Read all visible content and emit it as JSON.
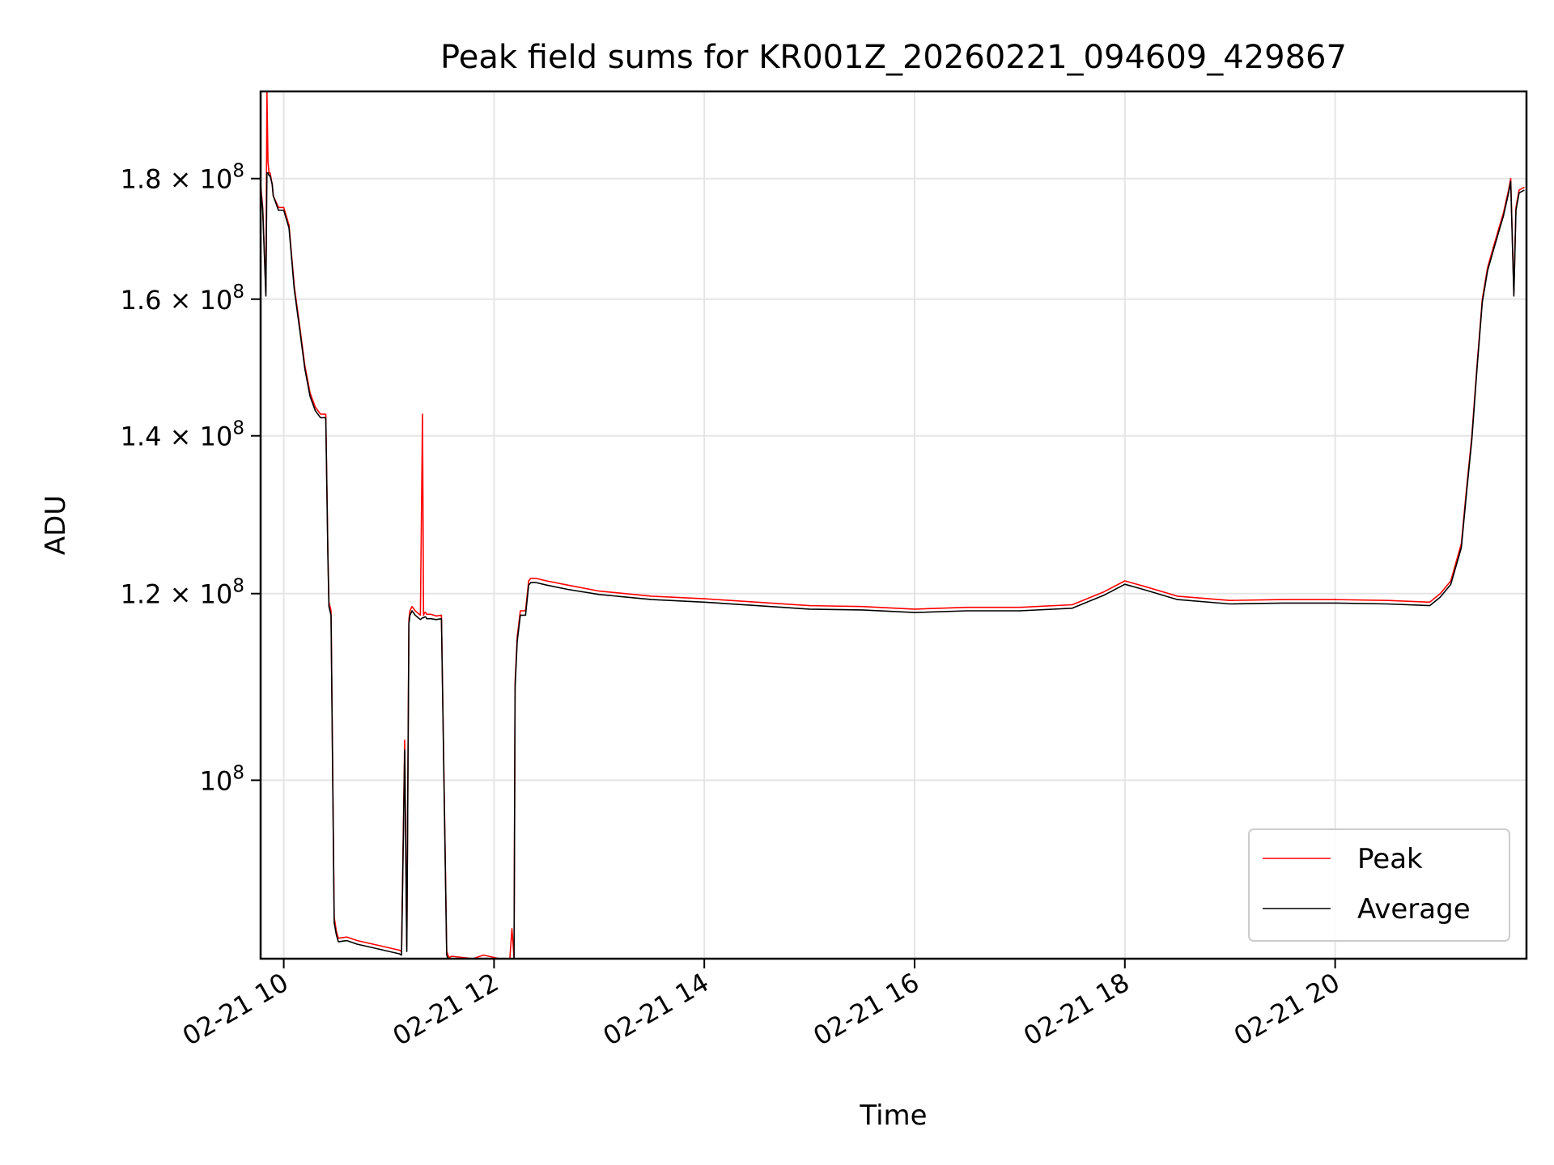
{
  "chart_data": {
    "type": "line",
    "title": "Peak field sums for KR001Z_20260221_094609_429867",
    "xlabel": "Time",
    "ylabel": "ADU",
    "yscale": "log",
    "xlim": [
      9.78,
      21.82
    ],
    "ylim": [
      84000000,
      196000000
    ],
    "grid": true,
    "legend_position": "lower-right",
    "x_ticks": [
      {
        "value": 10,
        "label": "02-21 10"
      },
      {
        "value": 12,
        "label": "02-21 12"
      },
      {
        "value": 14,
        "label": "02-21 14"
      },
      {
        "value": 16,
        "label": "02-21 16"
      },
      {
        "value": 18,
        "label": "02-21 18"
      },
      {
        "value": 20,
        "label": "02-21 20"
      }
    ],
    "y_ticks": [
      {
        "value": 100000000,
        "mantissa": "",
        "exponent": "8"
      },
      {
        "value": 120000000,
        "mantissa": "1.2",
        "exponent": "8"
      },
      {
        "value": 140000000,
        "mantissa": "1.4",
        "exponent": "8"
      },
      {
        "value": 160000000,
        "mantissa": "1.6",
        "exponent": "8"
      },
      {
        "value": 180000000,
        "mantissa": "1.8",
        "exponent": "8"
      }
    ],
    "y_tick_base": "10",
    "y_tick_times": "×",
    "x_unit": "hours (02-21)",
    "series": [
      {
        "name": "Peak",
        "color": "#ff0000",
        "x": [
          9.78,
          9.8,
          9.83,
          9.84,
          9.85,
          9.86,
          9.87,
          9.89,
          9.9,
          9.95,
          10.0,
          10.05,
          10.1,
          10.15,
          10.2,
          10.25,
          10.3,
          10.35,
          10.4,
          10.42,
          10.43,
          10.45,
          10.48,
          10.5,
          10.52,
          10.6,
          10.7,
          10.8,
          10.9,
          11.0,
          11.1,
          11.12,
          11.15,
          11.17,
          11.19,
          11.2,
          11.22,
          11.25,
          11.3,
          11.32,
          11.33,
          11.34,
          11.35,
          11.36,
          11.4,
          11.45,
          11.5,
          11.55,
          11.57,
          11.6,
          11.7,
          11.8,
          11.9,
          12.0,
          12.1,
          12.15,
          12.17,
          12.19,
          12.2,
          12.22,
          12.25,
          12.3,
          12.33,
          12.35,
          12.4,
          12.5,
          12.7,
          13.0,
          13.5,
          14.0,
          14.5,
          15.0,
          15.5,
          16.0,
          16.5,
          17.0,
          17.5,
          17.8,
          18.0,
          18.2,
          18.5,
          19.0,
          19.5,
          20.0,
          20.5,
          20.9,
          21.0,
          21.1,
          21.2,
          21.25,
          21.3,
          21.35,
          21.4,
          21.45,
          21.5,
          21.55,
          21.6,
          21.65,
          21.67,
          21.7,
          21.72,
          21.75,
          21.8
        ],
        "y": [
          179000000,
          175000000,
          161000000,
          196000000,
          183000000,
          181000000,
          181000000,
          179000000,
          177000000,
          175000000,
          175000000,
          172000000,
          162000000,
          156000000,
          150000000,
          146000000,
          144000000,
          143000000,
          143000000,
          125000000,
          119000000,
          118000000,
          87500000,
          86300000,
          85700000,
          85800000,
          85500000,
          85300000,
          85100000,
          84900000,
          84700000,
          84600000,
          104000000,
          85000000,
          117000000,
          118000000,
          118500000,
          118000000,
          117500000,
          143000000,
          117500000,
          117800000,
          117800000,
          117600000,
          117600000,
          117400000,
          117500000,
          84600000,
          84100000,
          84200000,
          84100000,
          84000000,
          84300000,
          84100000,
          83900000,
          84000000,
          86500000,
          84100000,
          110000000,
          115000000,
          118000000,
          118000000,
          121500000,
          121800000,
          121800000,
          121500000,
          121000000,
          120300000,
          119700000,
          119400000,
          119000000,
          118600000,
          118500000,
          118200000,
          118400000,
          118400000,
          118700000,
          120200000,
          121500000,
          120800000,
          119700000,
          119200000,
          119300000,
          119300000,
          119200000,
          119000000,
          120000000,
          121500000,
          126000000,
          133000000,
          140000000,
          150000000,
          160000000,
          165000000,
          168000000,
          171000000,
          174000000,
          178000000,
          180000000,
          161000000,
          175000000,
          178000000,
          178500000
        ]
      },
      {
        "name": "Average",
        "color": "#000000",
        "x": [
          9.78,
          9.8,
          9.83,
          9.84,
          9.85,
          9.86,
          9.87,
          9.89,
          9.9,
          9.95,
          10.0,
          10.05,
          10.1,
          10.15,
          10.2,
          10.25,
          10.3,
          10.35,
          10.4,
          10.42,
          10.43,
          10.45,
          10.48,
          10.5,
          10.52,
          10.6,
          10.7,
          10.8,
          10.9,
          11.0,
          11.1,
          11.12,
          11.15,
          11.17,
          11.19,
          11.2,
          11.22,
          11.25,
          11.3,
          11.32,
          11.33,
          11.34,
          11.35,
          11.36,
          11.4,
          11.45,
          11.5,
          11.55,
          11.57,
          11.6,
          11.7,
          11.8,
          11.9,
          12.0,
          12.1,
          12.15,
          12.17,
          12.19,
          12.2,
          12.22,
          12.25,
          12.3,
          12.33,
          12.35,
          12.4,
          12.5,
          12.7,
          13.0,
          13.5,
          14.0,
          14.5,
          15.0,
          15.5,
          16.0,
          16.5,
          17.0,
          17.5,
          17.8,
          18.0,
          18.2,
          18.5,
          19.0,
          19.5,
          20.0,
          20.5,
          20.9,
          21.0,
          21.1,
          21.2,
          21.25,
          21.3,
          21.35,
          21.4,
          21.45,
          21.5,
          21.55,
          21.6,
          21.65,
          21.67,
          21.7,
          21.72,
          21.75,
          21.8
        ],
        "y": [
          178500000,
          174500000,
          160500000,
          181000000,
          181000000,
          180500000,
          180500000,
          179000000,
          177000000,
          174500000,
          174500000,
          171500000,
          161500000,
          155500000,
          149500000,
          145500000,
          143500000,
          142500000,
          142500000,
          124500000,
          118500000,
          117500000,
          87000000,
          86000000,
          85400000,
          85500000,
          85200000,
          85000000,
          84800000,
          84600000,
          84400000,
          84300000,
          103000000,
          84600000,
          116500000,
          117500000,
          118000000,
          117500000,
          117000000,
          117200000,
          117200000,
          117300000,
          117300000,
          117100000,
          117100000,
          117000000,
          117100000,
          84300000,
          83800000,
          83900000,
          83800000,
          83700000,
          84000000,
          83800000,
          83600000,
          83700000,
          84000000,
          83800000,
          109500000,
          114500000,
          117500000,
          117500000,
          121000000,
          121300000,
          121300000,
          121000000,
          120500000,
          119900000,
          119300000,
          119000000,
          118600000,
          118200000,
          118100000,
          117800000,
          118000000,
          118000000,
          118300000,
          119800000,
          121100000,
          120400000,
          119300000,
          118800000,
          118900000,
          118900000,
          118800000,
          118600000,
          119600000,
          121100000,
          125500000,
          132500000,
          139500000,
          149500000,
          159500000,
          164500000,
          167500000,
          170500000,
          173500000,
          177500000,
          179500000,
          160500000,
          174500000,
          177500000,
          178000000
        ]
      }
    ]
  }
}
